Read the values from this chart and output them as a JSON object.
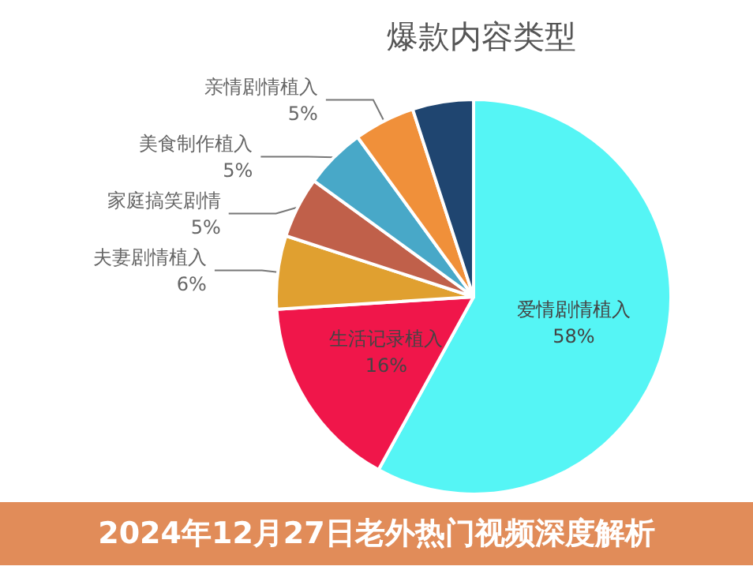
{
  "chart_data": {
    "type": "pie",
    "title": "爆款内容类型",
    "categories": [
      "爱情剧情植入",
      "生活记录植入",
      "夫妻剧情植入",
      "家庭搞笑剧情",
      "美食制作植入",
      "亲情剧情植入",
      null
    ],
    "values": [
      58,
      16,
      6,
      5,
      5,
      5,
      5
    ],
    "value_labels": [
      "58%",
      "16%",
      "6%",
      "5%",
      "5%",
      "5%",
      null
    ],
    "colors": [
      "#55f5f5",
      "#f0164a",
      "#e0a030",
      "#c0604a",
      "#48a8c8",
      "#f0903a",
      "#1f4570"
    ],
    "annotations": [
      "2024年12月27日老外热门视频深度解析"
    ]
  }
}
